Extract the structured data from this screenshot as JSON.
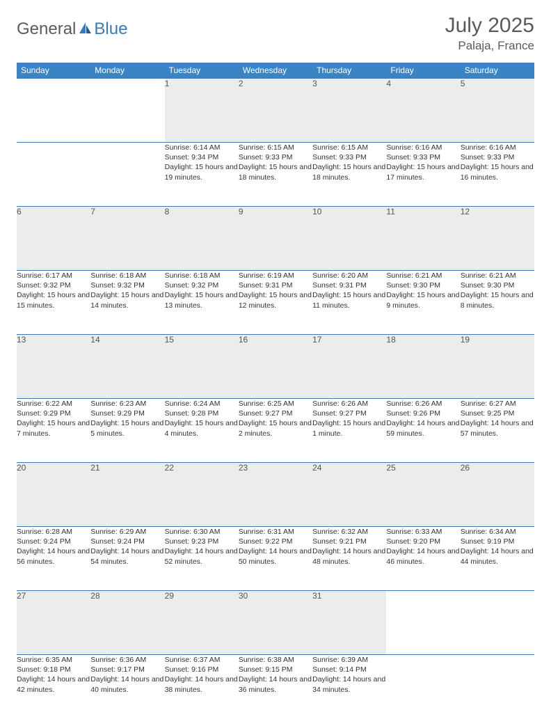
{
  "brand": {
    "word1": "General",
    "word2": "Blue",
    "color_general": "#5a5a5a",
    "color_blue": "#3a78b8"
  },
  "title": {
    "month": "July 2025",
    "location": "Palaja, France"
  },
  "header_bg": "#3a84c4",
  "daynum_bg": "#ececec",
  "border_color": "#3a78b8",
  "weekdays": [
    "Sunday",
    "Monday",
    "Tuesday",
    "Wednesday",
    "Thursday",
    "Friday",
    "Saturday"
  ],
  "weeks": [
    {
      "nums": [
        "",
        "",
        "1",
        "2",
        "3",
        "4",
        "5"
      ],
      "cells": [
        null,
        null,
        {
          "sunrise": "Sunrise: 6:14 AM",
          "sunset": "Sunset: 9:34 PM",
          "day": "Daylight: 15 hours and 19 minutes."
        },
        {
          "sunrise": "Sunrise: 6:15 AM",
          "sunset": "Sunset: 9:33 PM",
          "day": "Daylight: 15 hours and 18 minutes."
        },
        {
          "sunrise": "Sunrise: 6:15 AM",
          "sunset": "Sunset: 9:33 PM",
          "day": "Daylight: 15 hours and 18 minutes."
        },
        {
          "sunrise": "Sunrise: 6:16 AM",
          "sunset": "Sunset: 9:33 PM",
          "day": "Daylight: 15 hours and 17 minutes."
        },
        {
          "sunrise": "Sunrise: 6:16 AM",
          "sunset": "Sunset: 9:33 PM",
          "day": "Daylight: 15 hours and 16 minutes."
        }
      ]
    },
    {
      "nums": [
        "6",
        "7",
        "8",
        "9",
        "10",
        "11",
        "12"
      ],
      "cells": [
        {
          "sunrise": "Sunrise: 6:17 AM",
          "sunset": "Sunset: 9:32 PM",
          "day": "Daylight: 15 hours and 15 minutes."
        },
        {
          "sunrise": "Sunrise: 6:18 AM",
          "sunset": "Sunset: 9:32 PM",
          "day": "Daylight: 15 hours and 14 minutes."
        },
        {
          "sunrise": "Sunrise: 6:18 AM",
          "sunset": "Sunset: 9:32 PM",
          "day": "Daylight: 15 hours and 13 minutes."
        },
        {
          "sunrise": "Sunrise: 6:19 AM",
          "sunset": "Sunset: 9:31 PM",
          "day": "Daylight: 15 hours and 12 minutes."
        },
        {
          "sunrise": "Sunrise: 6:20 AM",
          "sunset": "Sunset: 9:31 PM",
          "day": "Daylight: 15 hours and 11 minutes."
        },
        {
          "sunrise": "Sunrise: 6:21 AM",
          "sunset": "Sunset: 9:30 PM",
          "day": "Daylight: 15 hours and 9 minutes."
        },
        {
          "sunrise": "Sunrise: 6:21 AM",
          "sunset": "Sunset: 9:30 PM",
          "day": "Daylight: 15 hours and 8 minutes."
        }
      ]
    },
    {
      "nums": [
        "13",
        "14",
        "15",
        "16",
        "17",
        "18",
        "19"
      ],
      "cells": [
        {
          "sunrise": "Sunrise: 6:22 AM",
          "sunset": "Sunset: 9:29 PM",
          "day": "Daylight: 15 hours and 7 minutes."
        },
        {
          "sunrise": "Sunrise: 6:23 AM",
          "sunset": "Sunset: 9:29 PM",
          "day": "Daylight: 15 hours and 5 minutes."
        },
        {
          "sunrise": "Sunrise: 6:24 AM",
          "sunset": "Sunset: 9:28 PM",
          "day": "Daylight: 15 hours and 4 minutes."
        },
        {
          "sunrise": "Sunrise: 6:25 AM",
          "sunset": "Sunset: 9:27 PM",
          "day": "Daylight: 15 hours and 2 minutes."
        },
        {
          "sunrise": "Sunrise: 6:26 AM",
          "sunset": "Sunset: 9:27 PM",
          "day": "Daylight: 15 hours and 1 minute."
        },
        {
          "sunrise": "Sunrise: 6:26 AM",
          "sunset": "Sunset: 9:26 PM",
          "day": "Daylight: 14 hours and 59 minutes."
        },
        {
          "sunrise": "Sunrise: 6:27 AM",
          "sunset": "Sunset: 9:25 PM",
          "day": "Daylight: 14 hours and 57 minutes."
        }
      ]
    },
    {
      "nums": [
        "20",
        "21",
        "22",
        "23",
        "24",
        "25",
        "26"
      ],
      "cells": [
        {
          "sunrise": "Sunrise: 6:28 AM",
          "sunset": "Sunset: 9:24 PM",
          "day": "Daylight: 14 hours and 56 minutes."
        },
        {
          "sunrise": "Sunrise: 6:29 AM",
          "sunset": "Sunset: 9:24 PM",
          "day": "Daylight: 14 hours and 54 minutes."
        },
        {
          "sunrise": "Sunrise: 6:30 AM",
          "sunset": "Sunset: 9:23 PM",
          "day": "Daylight: 14 hours and 52 minutes."
        },
        {
          "sunrise": "Sunrise: 6:31 AM",
          "sunset": "Sunset: 9:22 PM",
          "day": "Daylight: 14 hours and 50 minutes."
        },
        {
          "sunrise": "Sunrise: 6:32 AM",
          "sunset": "Sunset: 9:21 PM",
          "day": "Daylight: 14 hours and 48 minutes."
        },
        {
          "sunrise": "Sunrise: 6:33 AM",
          "sunset": "Sunset: 9:20 PM",
          "day": "Daylight: 14 hours and 46 minutes."
        },
        {
          "sunrise": "Sunrise: 6:34 AM",
          "sunset": "Sunset: 9:19 PM",
          "day": "Daylight: 14 hours and 44 minutes."
        }
      ]
    },
    {
      "nums": [
        "27",
        "28",
        "29",
        "30",
        "31",
        "",
        ""
      ],
      "cells": [
        {
          "sunrise": "Sunrise: 6:35 AM",
          "sunset": "Sunset: 9:18 PM",
          "day": "Daylight: 14 hours and 42 minutes."
        },
        {
          "sunrise": "Sunrise: 6:36 AM",
          "sunset": "Sunset: 9:17 PM",
          "day": "Daylight: 14 hours and 40 minutes."
        },
        {
          "sunrise": "Sunrise: 6:37 AM",
          "sunset": "Sunset: 9:16 PM",
          "day": "Daylight: 14 hours and 38 minutes."
        },
        {
          "sunrise": "Sunrise: 6:38 AM",
          "sunset": "Sunset: 9:15 PM",
          "day": "Daylight: 14 hours and 36 minutes."
        },
        {
          "sunrise": "Sunrise: 6:39 AM",
          "sunset": "Sunset: 9:14 PM",
          "day": "Daylight: 14 hours and 34 minutes."
        },
        null,
        null
      ]
    }
  ]
}
